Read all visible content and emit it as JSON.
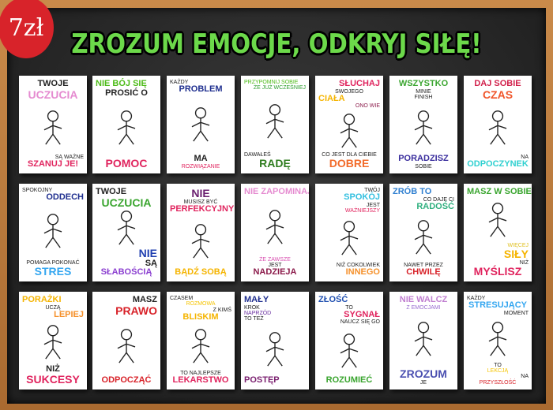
{
  "badge": {
    "price": "7zł",
    "color": "#d8232a"
  },
  "title": {
    "text": "ZROZUM EMOCJE, ODKRYJ SIŁĘ!",
    "color": "#6cd94a"
  },
  "posters": [
    {
      "top": [
        {
          "t": "TWOJE",
          "c": "#222",
          "z": "m",
          "a": "c"
        },
        {
          "t": "UCZUCIA",
          "c": "#e58bd0",
          "z": "l",
          "a": "c"
        }
      ],
      "bottom": [
        {
          "t": "SĄ WAŻNE",
          "c": "#222",
          "z": "s",
          "a": "r"
        },
        {
          "t": "SZANUJ JE!",
          "c": "#e0245e",
          "z": "m",
          "a": "c"
        }
      ]
    },
    {
      "top": [
        {
          "t": "NIE BÓJ SIĘ",
          "c": "#4cbb17",
          "z": "m",
          "a": "lft"
        },
        {
          "t": "PROSIĆ O",
          "c": "#222",
          "z": "m",
          "a": "c"
        }
      ],
      "bottom": [
        {
          "t": "POMOC",
          "c": "#e0245e",
          "z": "l",
          "a": "c"
        }
      ]
    },
    {
      "top": [
        {
          "t": "KAŻDY",
          "c": "#222",
          "z": "s",
          "a": "lft"
        },
        {
          "t": "PROBLEM",
          "c": "#1f2f8f",
          "z": "m",
          "a": "c"
        }
      ],
      "bottom": [
        {
          "t": "MA",
          "c": "#222",
          "z": "m",
          "a": "c"
        },
        {
          "t": "ROZWIĄZANIE",
          "c": "#e0245e",
          "z": "s",
          "a": "c"
        }
      ]
    },
    {
      "top": [
        {
          "t": "PRZYPOMNIJ SOBIE",
          "c": "#4cbb17",
          "z": "s",
          "a": "lft"
        },
        {
          "t": "ŻE JUŻ WCZEŚNIEJ",
          "c": "#2f9e2f",
          "z": "s",
          "a": "r"
        }
      ],
      "bottom": [
        {
          "t": "DAWAŁEŚ",
          "c": "#222",
          "z": "s",
          "a": "lft"
        },
        {
          "t": "RADĘ",
          "c": "#2f7d1f",
          "z": "l",
          "a": "c"
        }
      ]
    },
    {
      "top": [
        {
          "t": "SŁUCHAJ",
          "c": "#e0245e",
          "z": "m",
          "a": "r"
        },
        {
          "t": "SWOJEGO",
          "c": "#222",
          "z": "s",
          "a": "c"
        },
        {
          "t": "CIAŁA",
          "c": "#f5b400",
          "z": "m",
          "a": "lft"
        },
        {
          "t": "ONO WIE",
          "c": "#8b1a4a",
          "z": "s",
          "a": "r"
        }
      ],
      "bottom": [
        {
          "t": "CO JEST DLA CIEBIE",
          "c": "#222",
          "z": "s",
          "a": "c"
        },
        {
          "t": "DOBRE",
          "c": "#f26b2a",
          "z": "l",
          "a": "c"
        }
      ]
    },
    {
      "top": [
        {
          "t": "WSZYSTKO",
          "c": "#3aa52f",
          "z": "m",
          "a": "c"
        },
        {
          "t": "MINIE",
          "c": "#222",
          "z": "s",
          "a": "c"
        },
        {
          "t": "FINISH",
          "c": "#222",
          "z": "s",
          "a": "c"
        }
      ],
      "bottom": [
        {
          "t": "PORADZISZ",
          "c": "#3b2f9e",
          "z": "m",
          "a": "c"
        },
        {
          "t": "SOBIE",
          "c": "#222",
          "z": "s",
          "a": "c"
        }
      ]
    },
    {
      "top": [
        {
          "t": "DAJ SOBIE",
          "c": "#d11f4a",
          "z": "m",
          "a": "c"
        },
        {
          "t": "CZAS",
          "c": "#f0552a",
          "z": "l",
          "a": "c"
        }
      ],
      "bottom": [
        {
          "t": "NA",
          "c": "#222",
          "z": "s",
          "a": "r"
        },
        {
          "t": "ODPOCZYNEK",
          "c": "#2fd0d0",
          "z": "m",
          "a": "c"
        }
      ]
    },
    {
      "top": [
        {
          "t": "SPOKOJNY",
          "c": "#222",
          "z": "s",
          "a": "lft"
        },
        {
          "t": "ODDECH",
          "c": "#1f2f8f",
          "z": "m",
          "a": "r"
        }
      ],
      "bottom": [
        {
          "t": "POMAGA POKONAĆ",
          "c": "#222",
          "z": "s",
          "a": "c"
        },
        {
          "t": "STRES",
          "c": "#33a6f0",
          "z": "l",
          "a": "c"
        }
      ]
    },
    {
      "top": [
        {
          "t": "TWOJE",
          "c": "#222",
          "z": "m",
          "a": "lft"
        },
        {
          "t": "UCZUCIA",
          "c": "#3aa52f",
          "z": "l",
          "a": "c"
        }
      ],
      "bottom": [
        {
          "t": "NIE",
          "c": "#1f3fb0",
          "z": "l",
          "a": "r"
        },
        {
          "t": "SĄ",
          "c": "#222",
          "z": "m",
          "a": "r"
        },
        {
          "t": "SŁABOŚCIĄ",
          "c": "#8b3fd0",
          "z": "m",
          "a": "c"
        }
      ]
    },
    {
      "top": [
        {
          "t": "NIE",
          "c": "#6a1f6f",
          "z": "l",
          "a": "c"
        },
        {
          "t": "MUSISZ BYĆ",
          "c": "#222",
          "z": "s",
          "a": "c"
        },
        {
          "t": "PERFEKCYJNY",
          "c": "#e0245e",
          "z": "m",
          "a": "c"
        }
      ],
      "bottom": [
        {
          "t": "BĄDŹ SOBĄ",
          "c": "#f5b400",
          "z": "m",
          "a": "c"
        }
      ]
    },
    {
      "top": [
        {
          "t": "NIE ZAPOMINAJ",
          "c": "#e58bd0",
          "z": "m",
          "a": "c"
        }
      ],
      "bottom": [
        {
          "t": "ŻE ZAWSZE",
          "c": "#d84fb0",
          "z": "s",
          "a": "c"
        },
        {
          "t": "JEST",
          "c": "#222",
          "z": "s",
          "a": "c"
        },
        {
          "t": "NADZIEJA",
          "c": "#8b1a4a",
          "z": "m",
          "a": "c"
        }
      ]
    },
    {
      "top": [
        {
          "t": "TWÓJ",
          "c": "#222",
          "z": "s",
          "a": "r"
        },
        {
          "t": "SPOKÓJ",
          "c": "#33c0e0",
          "z": "m",
          "a": "r"
        },
        {
          "t": "JEST",
          "c": "#222",
          "z": "s",
          "a": "r"
        },
        {
          "t": "WAŻNIEJSZY",
          "c": "#e0245e",
          "z": "s",
          "a": "r"
        }
      ],
      "bottom": [
        {
          "t": "NIŻ COKOLWIEK",
          "c": "#222",
          "z": "s",
          "a": "r"
        },
        {
          "t": "INNEGO",
          "c": "#f5902a",
          "z": "m",
          "a": "r"
        }
      ]
    },
    {
      "top": [
        {
          "t": "ZRÓB TO",
          "c": "#2f7fd0",
          "z": "m",
          "a": "lft"
        },
        {
          "t": "CO DAJE CI",
          "c": "#222",
          "z": "s",
          "a": "r"
        },
        {
          "t": "RADOŚĆ",
          "c": "#2fb07f",
          "z": "m",
          "a": "r"
        }
      ],
      "bottom": [
        {
          "t": "NAWET PRZEZ",
          "c": "#222",
          "z": "s",
          "a": "c"
        },
        {
          "t": "CHWILĘ",
          "c": "#d8232a",
          "z": "m",
          "a": "c"
        }
      ]
    },
    {
      "top": [
        {
          "t": "MASZ W SOBIE",
          "c": "#3aa52f",
          "z": "m",
          "a": "lft"
        }
      ],
      "bottom": [
        {
          "t": "WIĘCEJ",
          "c": "#e0c020",
          "z": "s",
          "a": "r"
        },
        {
          "t": "SIŁY",
          "c": "#f5b400",
          "z": "l",
          "a": "r"
        },
        {
          "t": "NIŻ",
          "c": "#222",
          "z": "s",
          "a": "r"
        },
        {
          "t": "MYŚLISZ",
          "c": "#e0245e",
          "z": "l",
          "a": "c"
        }
      ]
    },
    {
      "top": [
        {
          "t": "PORAŻKI",
          "c": "#f5b400",
          "z": "m",
          "a": "lft"
        },
        {
          "t": "UCZĄ",
          "c": "#222",
          "z": "s",
          "a": "c"
        },
        {
          "t": "LEPIEJ",
          "c": "#f5902a",
          "z": "m",
          "a": "r"
        }
      ],
      "bottom": [
        {
          "t": "NIŻ",
          "c": "#222",
          "z": "m",
          "a": "c"
        },
        {
          "t": "SUKCESY",
          "c": "#e0245e",
          "z": "l",
          "a": "c"
        }
      ]
    },
    {
      "top": [
        {
          "t": "MASZ",
          "c": "#222",
          "z": "m",
          "a": "r"
        },
        {
          "t": "PRAWO",
          "c": "#d8232a",
          "z": "l",
          "a": "r"
        }
      ],
      "bottom": [
        {
          "t": "ODPOCZĄĆ",
          "c": "#d8232a",
          "z": "m",
          "a": "c"
        }
      ]
    },
    {
      "top": [
        {
          "t": "CZASEM",
          "c": "#222",
          "z": "s",
          "a": "lft"
        },
        {
          "t": "ROZMOWA",
          "c": "#f5c400",
          "z": "s",
          "a": "c"
        },
        {
          "t": "Z KIMŚ",
          "c": "#222",
          "z": "s",
          "a": "r"
        },
        {
          "t": "BLISKIM",
          "c": "#f5b400",
          "z": "m",
          "a": "c"
        }
      ],
      "bottom": [
        {
          "t": "TO NAJLEPSZE",
          "c": "#222",
          "z": "s",
          "a": "c"
        },
        {
          "t": "LEKARSTWO",
          "c": "#e0245e",
          "z": "m",
          "a": "c"
        }
      ]
    },
    {
      "top": [
        {
          "t": "MAŁY",
          "c": "#1f2f8f",
          "z": "m",
          "a": "lft"
        },
        {
          "t": "KROK",
          "c": "#222",
          "z": "s",
          "a": "lft"
        },
        {
          "t": "NAPRZÓD",
          "c": "#6a2fa0",
          "z": "s",
          "a": "lft"
        },
        {
          "t": "TO TEŻ",
          "c": "#222",
          "z": "s",
          "a": "lft"
        }
      ],
      "bottom": [
        {
          "t": "POSTĘP",
          "c": "#7a1f6f",
          "z": "m",
          "a": "lft"
        }
      ]
    },
    {
      "top": [
        {
          "t": "ZŁOŚĆ",
          "c": "#1f4fb0",
          "z": "m",
          "a": "lft"
        },
        {
          "t": "TO",
          "c": "#222",
          "z": "s",
          "a": "c"
        },
        {
          "t": "SYGNAŁ",
          "c": "#e0245e",
          "z": "m",
          "a": "r"
        },
        {
          "t": "NAUCZ SIĘ GO",
          "c": "#222",
          "z": "s",
          "a": "r"
        }
      ],
      "bottom": [
        {
          "t": "ROZUMIEĆ",
          "c": "#3aa52f",
          "z": "m",
          "a": "c"
        }
      ]
    },
    {
      "top": [
        {
          "t": "NIE WALCZ",
          "c": "#c07fd0",
          "z": "m",
          "a": "c"
        },
        {
          "t": "Z EMOCJAMI",
          "c": "#9a6fd0",
          "z": "s",
          "a": "c"
        }
      ],
      "bottom": [
        {
          "t": "ZROZUM",
          "c": "#4a4fb0",
          "z": "l",
          "a": "c"
        },
        {
          "t": "JE",
          "c": "#222",
          "z": "s",
          "a": "c"
        }
      ]
    },
    {
      "top": [
        {
          "t": "KAŻDY",
          "c": "#222",
          "z": "s",
          "a": "lft"
        },
        {
          "t": "STRESUJĄCY",
          "c": "#33a6f0",
          "z": "m",
          "a": "c"
        },
        {
          "t": "MOMENT",
          "c": "#222",
          "z": "s",
          "a": "r"
        }
      ],
      "bottom": [
        {
          "t": "TO",
          "c": "#222",
          "z": "s",
          "a": "c"
        },
        {
          "t": "LEKCJĄ",
          "c": "#f5c400",
          "z": "s",
          "a": "c"
        },
        {
          "t": "NA",
          "c": "#222",
          "z": "s",
          "a": "r"
        },
        {
          "t": "PRZYSZŁOŚĆ",
          "c": "#d8232a",
          "z": "s",
          "a": "c"
        }
      ]
    }
  ]
}
